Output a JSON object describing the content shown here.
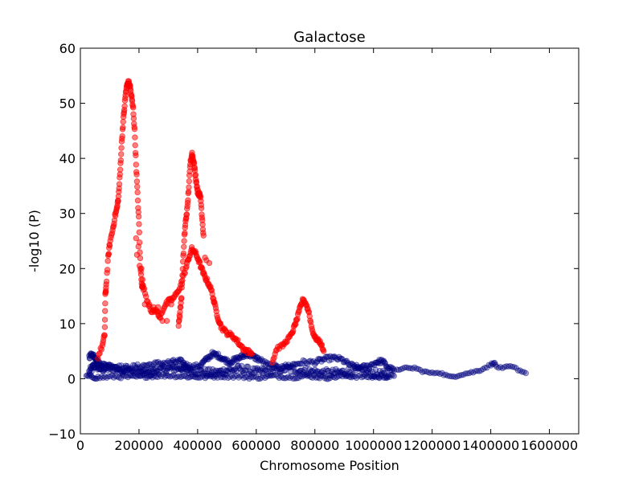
{
  "chart_data": {
    "type": "scatter",
    "title": "Galactose",
    "xlabel": "Chromosome Position",
    "ylabel": "-log10 (P)",
    "xlim": [
      0,
      1700000
    ],
    "ylim": [
      -10,
      60
    ],
    "x_ticks": [
      0,
      200000,
      400000,
      600000,
      800000,
      1000000,
      1200000,
      1400000,
      1600000
    ],
    "y_ticks": [
      -10,
      0,
      10,
      20,
      30,
      40,
      50,
      60
    ],
    "x_tick_labels": [
      "0",
      "200000",
      "400000",
      "600000",
      "800000",
      "1000000",
      "1200000",
      "1400000",
      "1600000"
    ],
    "y_tick_labels": [
      "−10",
      "0",
      "10",
      "20",
      "30",
      "40",
      "50",
      "60"
    ],
    "grid": false,
    "legend": "none",
    "series": [
      {
        "color": "#ff0000",
        "opacity": 0.5,
        "trace_a": [
          [
            60000,
            4
          ],
          [
            75000,
            6
          ],
          [
            83000,
            8
          ],
          [
            85000,
            15
          ],
          [
            88000,
            17
          ],
          [
            95000,
            22
          ],
          [
            100000,
            24.5
          ],
          [
            110000,
            27
          ],
          [
            118000,
            29.5
          ],
          [
            125000,
            31
          ],
          [
            130000,
            33
          ],
          [
            135000,
            37
          ],
          [
            140000,
            42
          ],
          [
            145000,
            46
          ],
          [
            150000,
            49
          ],
          [
            155000,
            52
          ],
          [
            160000,
            53.5
          ],
          [
            165000,
            53.8
          ],
          [
            170000,
            53
          ],
          [
            175000,
            51
          ],
          [
            180000,
            49
          ],
          [
            185000,
            45
          ],
          [
            190000,
            39
          ],
          [
            195000,
            33.5
          ],
          [
            200000,
            28
          ],
          [
            205000,
            20
          ],
          [
            210000,
            17
          ],
          [
            215000,
            16.5
          ],
          [
            230000,
            14
          ],
          [
            245000,
            12
          ],
          [
            260000,
            12.5
          ],
          [
            270000,
            11
          ],
          [
            285000,
            13
          ],
          [
            300000,
            14
          ],
          [
            315000,
            14.5
          ],
          [
            330000,
            15.5
          ],
          [
            345000,
            17.5
          ],
          [
            360000,
            20
          ],
          [
            370000,
            22
          ],
          [
            380000,
            23.5
          ],
          [
            390000,
            23
          ],
          [
            400000,
            22
          ],
          [
            410000,
            20.5
          ],
          [
            420000,
            19
          ],
          [
            430000,
            18
          ],
          [
            440000,
            17
          ],
          [
            450000,
            15.5
          ],
          [
            460000,
            13
          ],
          [
            470000,
            11
          ],
          [
            480000,
            9.5
          ],
          [
            495000,
            8.5
          ],
          [
            510000,
            8
          ],
          [
            525000,
            7.5
          ],
          [
            540000,
            6.5
          ],
          [
            555000,
            5.5
          ],
          [
            570000,
            5
          ],
          [
            585000,
            4.5
          ]
        ],
        "trace_b": [
          [
            335000,
            10
          ],
          [
            340000,
            12
          ],
          [
            345000,
            15
          ],
          [
            350000,
            21
          ],
          [
            355000,
            26
          ],
          [
            360000,
            29
          ],
          [
            365000,
            31
          ],
          [
            370000,
            35
          ],
          [
            375000,
            39
          ],
          [
            380000,
            41
          ],
          [
            385000,
            40
          ],
          [
            390000,
            38
          ],
          [
            395000,
            36
          ],
          [
            400000,
            34
          ],
          [
            405000,
            33.5
          ],
          [
            410000,
            33
          ],
          [
            415000,
            29.5
          ],
          [
            420000,
            26
          ]
        ],
        "trace_c": [
          [
            655000,
            3
          ],
          [
            670000,
            5.5
          ],
          [
            690000,
            6
          ],
          [
            705000,
            7
          ],
          [
            720000,
            8
          ],
          [
            730000,
            9.5
          ],
          [
            740000,
            11
          ],
          [
            750000,
            13
          ],
          [
            760000,
            14.5
          ],
          [
            770000,
            13.5
          ],
          [
            780000,
            12
          ],
          [
            790000,
            9
          ],
          [
            800000,
            7.5
          ],
          [
            810000,
            7
          ],
          [
            820000,
            6.5
          ],
          [
            830000,
            5
          ]
        ],
        "points": [
          [
            190000,
            25.5
          ],
          [
            193000,
            22.5
          ],
          [
            198000,
            24
          ],
          [
            202000,
            20.5
          ],
          [
            208000,
            20
          ],
          [
            212000,
            18
          ],
          [
            220000,
            13.5
          ],
          [
            235000,
            13.5
          ],
          [
            250000,
            13
          ],
          [
            265000,
            13
          ],
          [
            280000,
            10.5
          ],
          [
            295000,
            10.5
          ],
          [
            310000,
            13.5
          ],
          [
            425000,
            22
          ],
          [
            430000,
            21.5
          ],
          [
            440000,
            21
          ],
          [
            455000,
            14
          ]
        ]
      },
      {
        "color": "#00007f",
        "opacity": 0.35,
        "base": [
          [
            30000,
            1.2
          ],
          [
            50000,
            2.5
          ],
          [
            70000,
            1.8
          ],
          [
            100000,
            2.0
          ],
          [
            130000,
            1.8
          ],
          [
            160000,
            1.5
          ],
          [
            200000,
            1.2
          ],
          [
            230000,
            1.0
          ],
          [
            260000,
            1.5
          ],
          [
            300000,
            1.8
          ],
          [
            340000,
            2.0
          ],
          [
            370000,
            1.5
          ],
          [
            420000,
            1.2
          ],
          [
            460000,
            1.0
          ],
          [
            500000,
            1.5
          ],
          [
            550000,
            1.8
          ],
          [
            600000,
            1.2
          ],
          [
            650000,
            1.5
          ],
          [
            700000,
            1.8
          ],
          [
            750000,
            1.5
          ],
          [
            800000,
            1.2
          ],
          [
            850000,
            1.0
          ],
          [
            900000,
            1.2
          ],
          [
            950000,
            1.5
          ],
          [
            1000000,
            1.0
          ],
          [
            1050000,
            0.6
          ]
        ],
        "upper": [
          [
            30000,
            4
          ],
          [
            40000,
            4.5
          ],
          [
            50000,
            4
          ],
          [
            60000,
            3
          ],
          [
            80000,
            2.5
          ],
          [
            110000,
            2.3
          ],
          [
            150000,
            2.0
          ],
          [
            190000,
            2.2
          ],
          [
            230000,
            2.5
          ],
          [
            270000,
            2.8
          ],
          [
            310000,
            3.0
          ],
          [
            340000,
            3.2
          ],
          [
            360000,
            2.5
          ],
          [
            380000,
            2.0
          ],
          [
            410000,
            2.5
          ],
          [
            430000,
            3.5
          ],
          [
            450000,
            4.5
          ],
          [
            470000,
            4.2
          ],
          [
            490000,
            3.5
          ],
          [
            510000,
            3.0
          ],
          [
            530000,
            3.5
          ],
          [
            550000,
            4.0
          ],
          [
            570000,
            4.5
          ],
          [
            590000,
            4.0
          ],
          [
            610000,
            3.5
          ],
          [
            640000,
            2.5
          ],
          [
            680000,
            2.0
          ],
          [
            720000,
            2.5
          ],
          [
            760000,
            3.0
          ],
          [
            800000,
            3.0
          ],
          [
            830000,
            3.5
          ],
          [
            860000,
            3.8
          ],
          [
            890000,
            3.5
          ],
          [
            920000,
            2.5
          ],
          [
            950000,
            2.0
          ],
          [
            980000,
            2.2
          ],
          [
            1010000,
            3.0
          ],
          [
            1030000,
            3.2
          ],
          [
            1050000,
            2.0
          ],
          [
            1070000,
            1.5
          ]
        ],
        "lower": [
          [
            20000,
            0.5
          ],
          [
            60000,
            0.2
          ],
          [
            120000,
            0.4
          ],
          [
            180000,
            0.3
          ],
          [
            240000,
            0.5
          ],
          [
            300000,
            0.6
          ],
          [
            360000,
            0.4
          ],
          [
            420000,
            0.3
          ],
          [
            480000,
            0.5
          ],
          [
            540000,
            0.4
          ],
          [
            600000,
            0.2
          ],
          [
            660000,
            0.5
          ],
          [
            720000,
            0.3
          ],
          [
            780000,
            0.5
          ],
          [
            840000,
            0.2
          ],
          [
            900000,
            0.5
          ],
          [
            960000,
            0.4
          ],
          [
            1020000,
            0.3
          ],
          [
            1070000,
            0.5
          ]
        ],
        "tail": [
          [
            1080000,
            1.5
          ],
          [
            1100000,
            2.0
          ],
          [
            1120000,
            1.8
          ],
          [
            1140000,
            2.0
          ],
          [
            1160000,
            1.5
          ],
          [
            1180000,
            1.2
          ],
          [
            1200000,
            1.0
          ],
          [
            1220000,
            1.2
          ],
          [
            1240000,
            0.8
          ],
          [
            1260000,
            0.3
          ],
          [
            1280000,
            0.5
          ],
          [
            1300000,
            0.8
          ],
          [
            1320000,
            1.0
          ],
          [
            1340000,
            1.2
          ],
          [
            1360000,
            1.5
          ],
          [
            1380000,
            2.0
          ],
          [
            1400000,
            2.5
          ],
          [
            1410000,
            3.0
          ],
          [
            1420000,
            2.2
          ],
          [
            1440000,
            1.8
          ],
          [
            1460000,
            2.2
          ],
          [
            1480000,
            2.0
          ],
          [
            1500000,
            1.5
          ],
          [
            1520000,
            1.0
          ]
        ]
      }
    ]
  }
}
